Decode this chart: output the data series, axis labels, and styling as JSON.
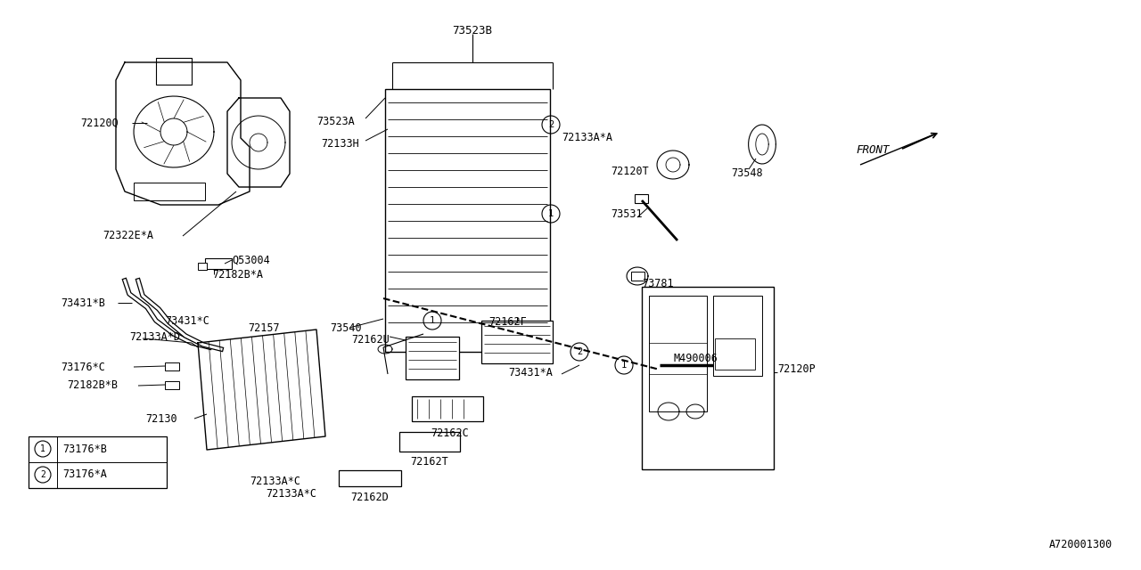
{
  "bg_color": "#ffffff",
  "diagram_id": "A720001300",
  "legend": [
    {
      "num": "1",
      "text": "73176*B"
    },
    {
      "num": "2",
      "text": "73176*A"
    }
  ]
}
